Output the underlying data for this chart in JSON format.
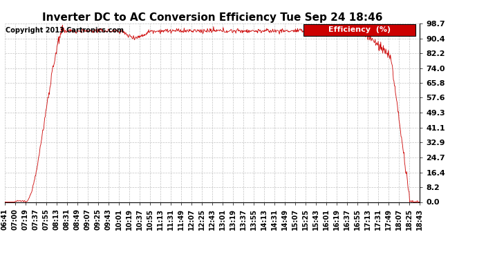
{
  "title": "Inverter DC to AC Conversion Efficiency Tue Sep 24 18:46",
  "copyright": "Copyright 2013 Cartronics.com",
  "legend_label": "Efficiency  (%)",
  "legend_bg": "#cc0000",
  "legend_fg": "#ffffff",
  "line_color": "#cc0000",
  "background_color": "#ffffff",
  "grid_color": "#bbbbbb",
  "ylim": [
    0.0,
    98.7
  ],
  "yticks": [
    0.0,
    8.2,
    16.4,
    24.7,
    32.9,
    41.1,
    49.3,
    57.6,
    65.8,
    74.0,
    82.2,
    90.4,
    98.7
  ],
  "xtick_labels": [
    "06:41",
    "07:00",
    "07:19",
    "07:37",
    "07:55",
    "08:13",
    "08:31",
    "08:49",
    "09:07",
    "09:25",
    "09:43",
    "10:01",
    "10:19",
    "10:37",
    "10:55",
    "11:13",
    "11:31",
    "11:49",
    "12:07",
    "12:25",
    "12:43",
    "13:01",
    "13:19",
    "13:37",
    "13:55",
    "14:13",
    "14:31",
    "14:49",
    "15:07",
    "15:25",
    "15:43",
    "16:01",
    "16:19",
    "16:37",
    "16:55",
    "17:13",
    "17:31",
    "17:49",
    "18:07",
    "18:25",
    "18:43"
  ],
  "title_fontsize": 11,
  "copyright_fontsize": 7,
  "tick_fontsize": 7,
  "legend_fontsize": 8,
  "ytick_fontsize": 8
}
